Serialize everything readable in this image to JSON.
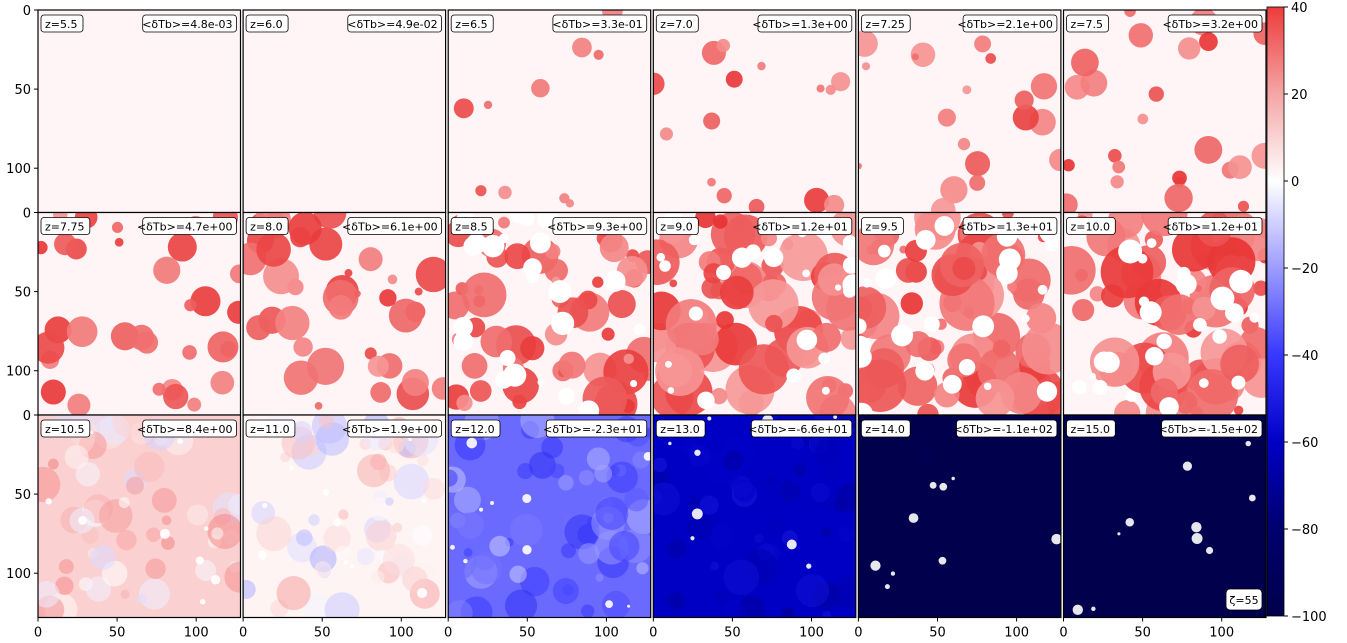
{
  "chart_data": {
    "type": "heatmap",
    "grid": {
      "rows": 3,
      "cols": 6
    },
    "x_ticks": [
      0,
      50,
      100
    ],
    "y_ticks": [
      0,
      50,
      100
    ],
    "axis_range": [
      0,
      128
    ],
    "colormap": "seismic",
    "colorbar": {
      "vmin": -100,
      "vmax": 40,
      "ticks": [
        40,
        20,
        0,
        -20,
        -40,
        -60,
        -80,
        -100
      ],
      "tick_labels": [
        "40",
        "20",
        "0",
        "−20",
        "−40",
        "−60",
        "−80",
        "−100"
      ]
    },
    "panels": [
      {
        "z_label": "z=5.5",
        "mean_label": "<δTb>=4.8e-03",
        "redshift": 5.5,
        "mean_dTb": 0.0048,
        "style": "empty"
      },
      {
        "z_label": "z=6.0",
        "mean_label": "<δTb>=4.9e-02",
        "redshift": 6.0,
        "mean_dTb": 0.049,
        "style": "empty"
      },
      {
        "z_label": "z=6.5",
        "mean_label": "<δTb>=3.3e-01",
        "redshift": 6.5,
        "mean_dTb": 0.33,
        "style": "islands"
      },
      {
        "z_label": "z=7.0",
        "mean_label": "<δTb>=1.3e+00",
        "redshift": 7.0,
        "mean_dTb": 1.3,
        "style": "islands"
      },
      {
        "z_label": "z=7.25",
        "mean_label": "<δTb>=2.1e+00",
        "redshift": 7.25,
        "mean_dTb": 2.1,
        "style": "islands"
      },
      {
        "z_label": "z=7.5",
        "mean_label": "<δTb>=3.2e+00",
        "redshift": 7.5,
        "mean_dTb": 3.2,
        "style": "islands"
      },
      {
        "z_label": "z=7.75",
        "mean_label": "<δTb>=4.7e+00",
        "redshift": 7.75,
        "mean_dTb": 4.7,
        "style": "islands"
      },
      {
        "z_label": "z=8.0",
        "mean_label": "<δTb>=6.1e+00",
        "redshift": 8.0,
        "mean_dTb": 6.1,
        "style": "islands"
      },
      {
        "z_label": "z=8.5",
        "mean_label": "<δTb>=9.3e+00",
        "redshift": 8.5,
        "mean_dTb": 9.3,
        "style": "islands"
      },
      {
        "z_label": "z=9.0",
        "mean_label": "<δTb>=1.2e+01",
        "redshift": 9.0,
        "mean_dTb": 12,
        "style": "islands"
      },
      {
        "z_label": "z=9.5",
        "mean_label": "<δTb>=1.3e+01",
        "redshift": 9.5,
        "mean_dTb": 13,
        "style": "islands"
      },
      {
        "z_label": "z=10.0",
        "mean_label": "<δTb>=1.2e+01",
        "redshift": 10.0,
        "mean_dTb": 12,
        "style": "islands"
      },
      {
        "z_label": "z=10.5",
        "mean_label": "<δTb>=8.4e+00",
        "redshift": 10.5,
        "mean_dTb": 8.4,
        "style": "field"
      },
      {
        "z_label": "z=11.0",
        "mean_label": "<δTb>=1.9e+00",
        "redshift": 11.0,
        "mean_dTb": 1.9,
        "style": "field"
      },
      {
        "z_label": "z=12.0",
        "mean_label": "<δTb>=-2.3e+01",
        "redshift": 12.0,
        "mean_dTb": -23,
        "style": "field"
      },
      {
        "z_label": "z=13.0",
        "mean_label": "<δTb>=-6.6e+01",
        "redshift": 13.0,
        "mean_dTb": -66,
        "style": "field"
      },
      {
        "z_label": "z=14.0",
        "mean_label": "<δTb>=-1.1e+02",
        "redshift": 14.0,
        "mean_dTb": -110,
        "style": "field"
      },
      {
        "z_label": "z=15.0",
        "mean_label": "<δTb>=-1.5e+02",
        "redshift": 15.0,
        "mean_dTb": -150,
        "style": "field"
      }
    ],
    "annotation": "ζ=55"
  }
}
